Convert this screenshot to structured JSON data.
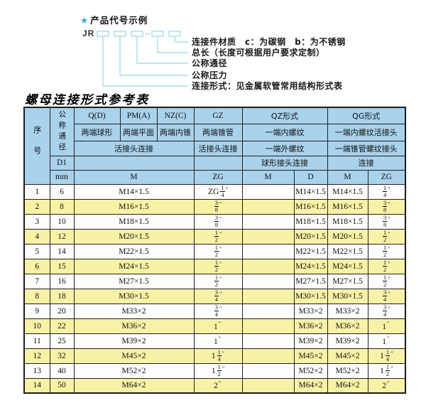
{
  "colors": {
    "header_bg": "#a9d2ec",
    "stripe_yellow": "#f8f2a6",
    "row_white": "#fdfdfd",
    "line_cyan": "#a8dcec",
    "star_cyan": "#2aa8d8"
  },
  "diagram": {
    "star": "★",
    "title": "产品代号示例",
    "prefix": "JR",
    "labels": [
      "连接件材质　c：为碳钢　b：为不锈钢",
      "总长（长度可根据用户要求定制）",
      "公称通径",
      "公称压力",
      "连接形式：见金属软管常用结构形式表"
    ]
  },
  "table": {
    "title": "螺母连接形式参考表",
    "header": {
      "seq": "序号",
      "dn": "公称通径",
      "d1": "D1",
      "mm": "mm",
      "col_q": "Q(D)",
      "col_pm": "PM(A)",
      "col_nz": "NZ(C)",
      "col_gz": "GZ",
      "col_qz": "QZ形式",
      "col_qg": "QG形式",
      "q_desc": "两端球形",
      "pm_desc": "两端平面",
      "nz_desc": "两端内锥",
      "gz_desc": "两端锥管",
      "qz_desc1": "一端内螺纹",
      "qg_desc1": "一端内螺纹活接头",
      "union_conn": "活接头连接",
      "gz_conn": "活接头连接",
      "qz_desc2": "一端外螺纹",
      "qg_desc2": "一端锥管螺纹接头",
      "qz_conn": "球形接头连接",
      "qg_conn": "连接",
      "m_label": "M",
      "zg_label": "ZG",
      "qz_m_label": "M",
      "qz_d_label": "D",
      "qg_m_label": "M",
      "qg_zg_label": "ZG"
    },
    "rows": [
      {
        "seq": "1",
        "mm": "6",
        "m": "M14×1.5",
        "gz": "ZG 1/4″",
        "qz_m": "",
        "qz_d": "M14×1.5",
        "qg_m": "M14×1.5",
        "qg_zg": "1/4″"
      },
      {
        "seq": "2",
        "mm": "8",
        "m": "M16×1.5",
        "gz": "3/8″",
        "qz_m": "",
        "qz_d": "M16×1.5",
        "qg_m": "M16×1.5",
        "qg_zg": "3/8″"
      },
      {
        "seq": "3",
        "mm": "10",
        "m": "M18×1.5",
        "gz": "3/8″",
        "qz_m": "",
        "qz_d": "M18×1.5",
        "qg_m": "M18×1.5",
        "qg_zg": "3/8″"
      },
      {
        "seq": "4",
        "mm": "12",
        "m": "M20×1.5",
        "gz": "1/2″",
        "qz_m": "",
        "qz_d": "M20×1.5",
        "qg_m": "M20×1.5",
        "qg_zg": "1/2″"
      },
      {
        "seq": "5",
        "mm": "14",
        "m": "M22×1.5",
        "gz": "1/2″",
        "qz_m": "",
        "qz_d": "M22×1.5",
        "qg_m": "M22×1.5",
        "qg_zg": "1/2″"
      },
      {
        "seq": "6",
        "mm": "15",
        "m": "M24×1.5",
        "gz": "1/2″",
        "qz_m": "",
        "qz_d": "M24×1.5",
        "qg_m": "M24×1.5",
        "qg_zg": "1/2″"
      },
      {
        "seq": "7",
        "mm": "16",
        "m": "M27×1.5",
        "gz": "1/2″",
        "qz_m": "",
        "qz_d": "M27×1.5",
        "qg_m": "M27×1.5",
        "qg_zg": "1/2″"
      },
      {
        "seq": "8",
        "mm": "18",
        "m": "M30×1.5",
        "gz": "3/4″",
        "qz_m": "",
        "qz_d": "M30×1.5",
        "qg_m": "M30×1.5",
        "qg_zg": "3/4″"
      },
      {
        "seq": "9",
        "mm": "20",
        "m": "M33×2",
        "gz": "3/4″",
        "qz_m": "",
        "qz_d": "M33×2",
        "qg_m": "M33×2",
        "qg_zg": "3/4″"
      },
      {
        "seq": "10",
        "mm": "22",
        "m": "M36×2",
        "gz": "1″",
        "qz_m": "",
        "qz_d": "M36×2",
        "qg_m": "M36×2",
        "qg_zg": "1″"
      },
      {
        "seq": "11",
        "mm": "25",
        "m": "M39×2",
        "gz": "1″",
        "qz_m": "",
        "qz_d": "M39×2",
        "qg_m": "M39×2",
        "qg_zg": "1″"
      },
      {
        "seq": "12",
        "mm": "32",
        "m": "M45×2",
        "gz": "1 1/4″",
        "qz_m": "",
        "qz_d": "M45×2",
        "qg_m": "M45×2",
        "qg_zg": "1 1/4″"
      },
      {
        "seq": "13",
        "mm": "40",
        "m": "M52×2",
        "gz": "1 1/2″",
        "qz_m": "",
        "qz_d": "M52×2",
        "qg_m": "M52×2",
        "qg_zg": "1 1/2″"
      },
      {
        "seq": "14",
        "mm": "50",
        "m": "M64×2",
        "gz": "2″",
        "qz_m": "",
        "qz_d": "M64×2",
        "qg_m": "M64×2",
        "qg_zg": "2″"
      }
    ]
  }
}
